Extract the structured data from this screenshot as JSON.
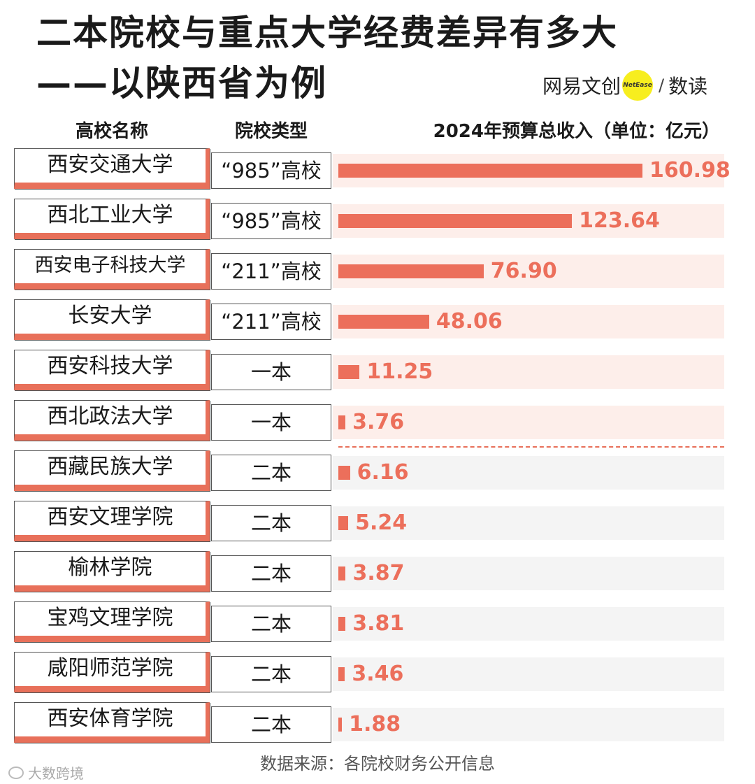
{
  "title_line1": "二本院校与重点大学经费差异有多大",
  "title_line2": "——以陕西省为例",
  "brand": {
    "name": "网易文创",
    "dot_text": "NetEase",
    "slash": "/",
    "suffix": "数读"
  },
  "headers": {
    "name": "高校名称",
    "type": "院校类型",
    "value": "2024年预算总收入（单位：亿元）"
  },
  "source": "数据来源：各院校财务公开信息",
  "watermark": "大数跨境",
  "colors": {
    "accent": "#ec6f5b",
    "row_bg_top": "#fdeeea",
    "row_bg_bottom": "#f4f4f4",
    "brand_dot": "#f7ee1e"
  },
  "chart_data": {
    "type": "bar",
    "orientation": "horizontal",
    "title": "二本院校与重点大学经费差异有多大——以陕西省为例",
    "value_label": "2024年预算总收入（单位：亿元）",
    "unit": "亿元",
    "xlim": [
      0,
      160.98
    ],
    "rows": [
      {
        "name": "西安交通大学",
        "type": "“985”高校",
        "value": 160.98,
        "label": "160.98",
        "group": "top"
      },
      {
        "name": "西北工业大学",
        "type": "“985”高校",
        "value": 123.64,
        "label": "123.64",
        "group": "top"
      },
      {
        "name": "西安电子科技大学",
        "type": "“211”高校",
        "value": 76.9,
        "label": "76.90",
        "group": "top"
      },
      {
        "name": "长安大学",
        "type": "“211”高校",
        "value": 48.06,
        "label": "48.06",
        "group": "top"
      },
      {
        "name": "西安科技大学",
        "type": "一本",
        "value": 11.25,
        "label": "11.25",
        "group": "top"
      },
      {
        "name": "西北政法大学",
        "type": "一本",
        "value": 3.76,
        "label": "3.76",
        "group": "top"
      },
      {
        "name": "西藏民族大学",
        "type": "二本",
        "value": 6.16,
        "label": "6.16",
        "group": "bottom"
      },
      {
        "name": "西安文理学院",
        "type": "二本",
        "value": 5.24,
        "label": "5.24",
        "group": "bottom"
      },
      {
        "name": "榆林学院",
        "type": "二本",
        "value": 3.87,
        "label": "3.87",
        "group": "bottom"
      },
      {
        "name": "宝鸡文理学院",
        "type": "二本",
        "value": 3.81,
        "label": "3.81",
        "group": "bottom"
      },
      {
        "name": "咸阳师范学院",
        "type": "二本",
        "value": 3.46,
        "label": "3.46",
        "group": "bottom"
      },
      {
        "name": "西安体育学院",
        "type": "二本",
        "value": 1.88,
        "label": "1.88",
        "group": "bottom"
      }
    ]
  }
}
